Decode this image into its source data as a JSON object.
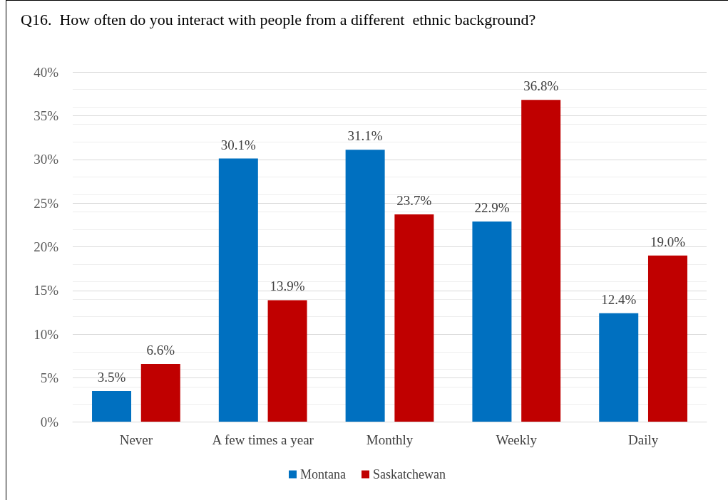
{
  "chart_data": {
    "type": "bar",
    "title": "Q16.  How often do you interact with people from a different  ethnic background?",
    "categories": [
      "Never",
      "A few times a year",
      "Monthly",
      "Weekly",
      "Daily"
    ],
    "series": [
      {
        "name": "Montana",
        "color": "#0070c0",
        "values": [
          3.5,
          30.1,
          31.1,
          22.9,
          12.4
        ],
        "value_labels": [
          "3.5%",
          "30.1%",
          "31.1%",
          "22.9%",
          "12.4%"
        ]
      },
      {
        "name": "Saskatchewan",
        "color": "#c00000",
        "values": [
          6.6,
          13.9,
          23.7,
          36.8,
          19.0
        ],
        "value_labels": [
          "6.6%",
          "13.9%",
          "23.7%",
          "36.8%",
          "19.0%"
        ]
      }
    ],
    "ylim": [
      0,
      40
    ],
    "yticks": [
      {
        "value": 0,
        "label": "0%"
      },
      {
        "value": 5,
        "label": "5%"
      },
      {
        "value": 10,
        "label": "10%"
      },
      {
        "value": 15,
        "label": "15%"
      },
      {
        "value": 20,
        "label": "20%"
      },
      {
        "value": 25,
        "label": "25%"
      },
      {
        "value": 30,
        "label": "30%"
      },
      {
        "value": 35,
        "label": "35%"
      },
      {
        "value": 40,
        "label": "40%"
      }
    ],
    "grid": true,
    "legend": "bottom"
  }
}
